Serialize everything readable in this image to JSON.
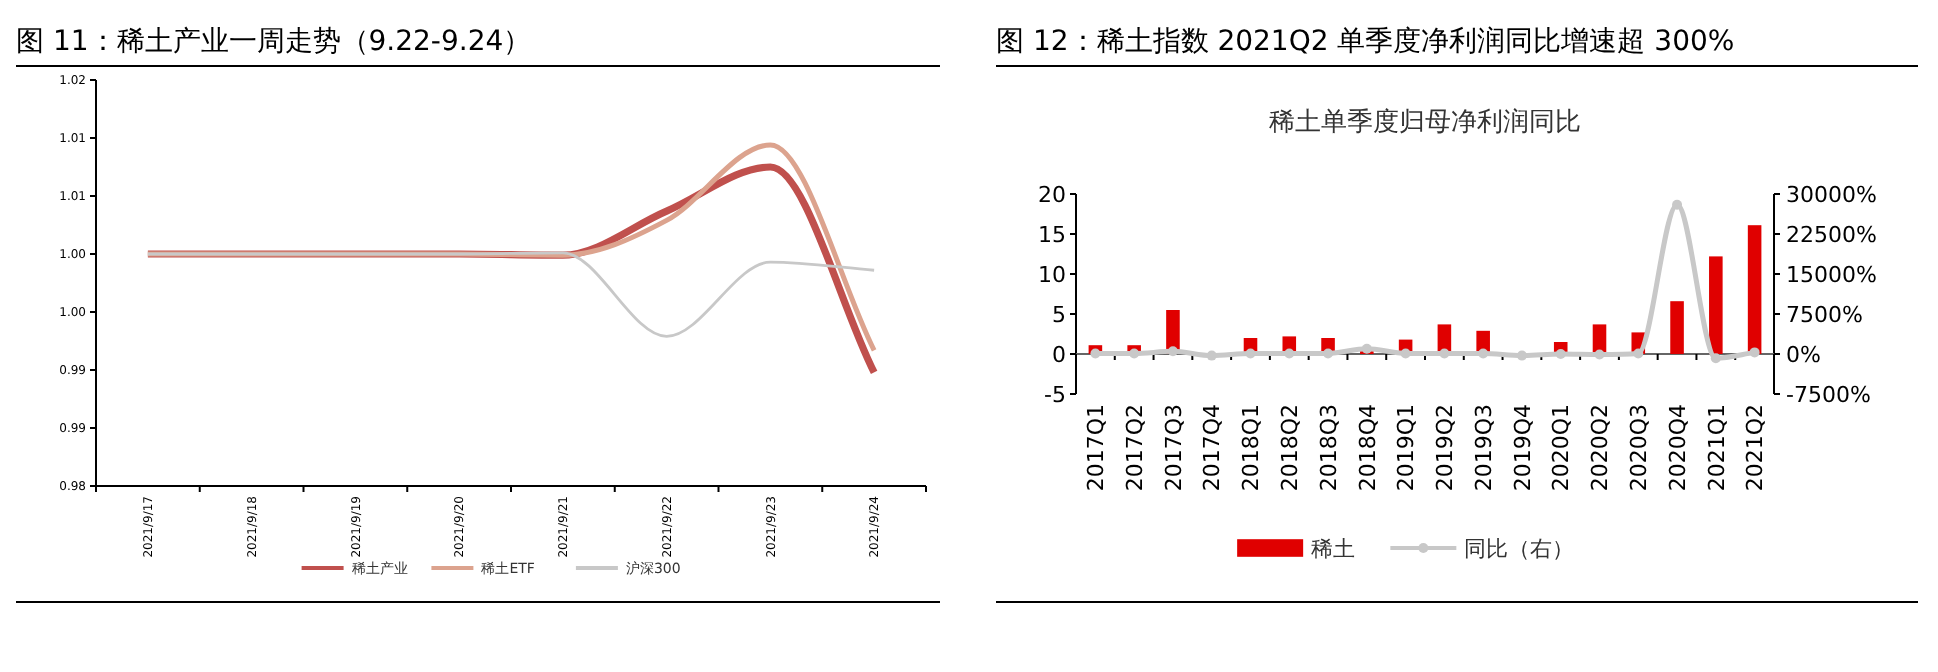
{
  "chart_data": [
    {
      "type": "line",
      "title": "图 11：稀土产业一周走势（9.22-9.24）",
      "categories": [
        "2021/9/17",
        "2021/9/18",
        "2021/9/19",
        "2021/9/20",
        "2021/9/21",
        "2021/9/22",
        "2021/9/23",
        "2021/9/24"
      ],
      "series": [
        {
          "name": "稀土产业",
          "color": "#c0504d",
          "values": [
            1.0,
            1.0,
            1.0,
            1.0,
            0.9999,
            1.0037,
            1.0075,
            0.9898
          ]
        },
        {
          "name": "稀土ETF",
          "color": "#dca38e",
          "values": [
            1.0,
            1.0,
            1.0,
            1.0,
            0.9999,
            1.0029,
            1.0094,
            0.9917
          ]
        },
        {
          "name": "沪深300",
          "color": "#c8c8c8",
          "values": [
            1.0,
            1.0,
            1.0,
            1.0,
            1.0001,
            0.9929,
            0.9993,
            0.9986
          ]
        }
      ],
      "ylim": [
        0.98,
        1.015
      ],
      "yticks": [
        {
          "value": 0.98,
          "label": "0.98"
        },
        {
          "value": 0.985,
          "label": "0.99"
        },
        {
          "value": 0.99,
          "label": "0.99"
        },
        {
          "value": 0.995,
          "label": "1.00"
        },
        {
          "value": 1.0,
          "label": "1.00"
        },
        {
          "value": 1.005,
          "label": "1.01"
        },
        {
          "value": 1.01,
          "label": "1.01"
        },
        {
          "value": 1.015,
          "label": "1.02"
        }
      ],
      "legend": "bottom"
    },
    {
      "type": "bar",
      "title": "图 12：稀土指数 2021Q2 单季度净利润同比增速超 300%",
      "subtitle": "稀土单季度归母净利润同比",
      "categories": [
        "2017Q1",
        "2017Q2",
        "2017Q3",
        "2017Q4",
        "2018Q1",
        "2018Q2",
        "2018Q3",
        "2018Q4",
        "2019Q1",
        "2019Q2",
        "2019Q3",
        "2019Q4",
        "2020Q1",
        "2020Q2",
        "2020Q3",
        "2020Q4",
        "2021Q1",
        "2021Q2"
      ],
      "series": [
        {
          "name": "稀土",
          "color": "#e00000",
          "values": [
            1.1,
            1.1,
            5.5,
            null,
            2.0,
            2.2,
            2.0,
            0.4,
            1.8,
            3.7,
            2.9,
            null,
            1.5,
            3.7,
            2.7,
            6.6,
            12.2,
            16.1
          ]
        },
        {
          "name": "同比（右）",
          "type": "line",
          "axis": "y2",
          "marker": "circle",
          "color": "#c8c8c8",
          "values": [
            100,
            100,
            500,
            -300,
            100,
            100,
            100,
            1000,
            100,
            100,
            100,
            -300,
            0,
            -100,
            100,
            28000,
            -800,
            300
          ]
        }
      ],
      "ylim": [
        -5,
        20
      ],
      "yticks": [
        -5,
        0,
        5,
        10,
        15,
        20
      ],
      "y2lim": [
        -7500,
        30000
      ],
      "y2ticks": [
        {
          "value": -7500,
          "label": "-7500%"
        },
        {
          "value": 0,
          "label": "0%"
        },
        {
          "value": 7500,
          "label": "7500%"
        },
        {
          "value": 15000,
          "label": "15000%"
        },
        {
          "value": 22500,
          "label": "22500%"
        },
        {
          "value": 30000,
          "label": "30000%"
        }
      ],
      "legend": "bottom"
    }
  ]
}
